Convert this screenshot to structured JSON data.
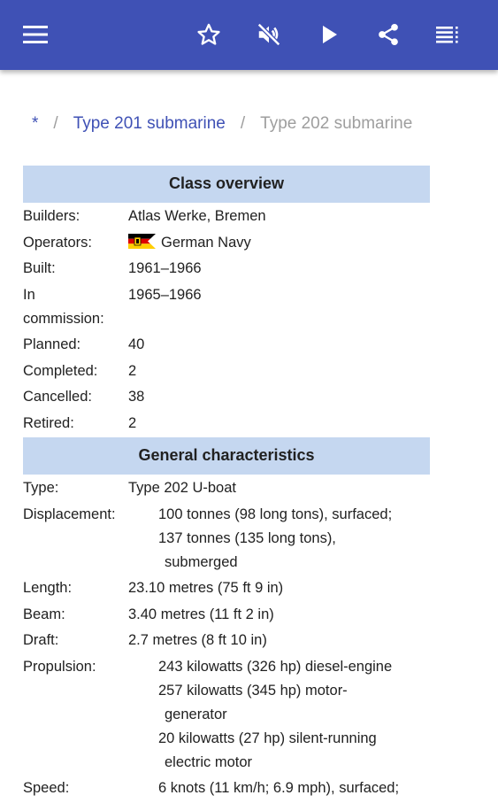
{
  "toolbar": {
    "menu_icon": "hamburger-menu-icon",
    "actions": [
      "star-icon",
      "mute-icon",
      "play-icon",
      "share-icon",
      "list-icon"
    ]
  },
  "breadcrumb": {
    "root": "*",
    "parent": "Type 201 submarine",
    "current": "Type 202 submarine"
  },
  "infobox": {
    "class_overview": {
      "title": "Class overview",
      "builders_label": "Builders:",
      "builders_value": "Atlas Werke, Bremen",
      "operators_label": "Operators:",
      "operators_value": "German Navy",
      "built_label": "Built:",
      "built_value": "1961–1966",
      "commission_label_1": "In",
      "commission_label_2": "commission:",
      "commission_value": "1965–1966",
      "planned_label": "Planned:",
      "planned_value": "40",
      "completed_label": "Completed:",
      "completed_value": "2",
      "cancelled_label": "Cancelled:",
      "cancelled_value": "38",
      "retired_label": "Retired:",
      "retired_value": "2"
    },
    "general": {
      "title": "General characteristics",
      "type_label": "Type:",
      "type_value": "Type 202 U-boat",
      "displacement_label": "Displacement:",
      "displacement_line1": "100 tonnes (98 long tons), surfaced;",
      "displacement_line2": "137 tonnes (135 long tons),",
      "displacement_line3": "submerged",
      "length_label": "Length:",
      "length_value": "23.10 metres (75 ft 9 in)",
      "beam_label": "Beam:",
      "beam_value": "3.40 metres (11 ft 2 in)",
      "draft_label": "Draft:",
      "draft_value": "2.7 metres (8 ft 10 in)",
      "propulsion_label": "Propulsion:",
      "propulsion_line1": "243 kilowatts (326 hp) diesel-engine",
      "propulsion_line2": "257 kilowatts (345 hp) motor-",
      "propulsion_line3": "generator",
      "propulsion_line4": "20 kilowatts (27 hp) silent-running",
      "propulsion_line5": "electric motor",
      "speed_label": "Speed:",
      "speed_value": "6 knots (11 km/h; 6.9 mph), surfaced;"
    }
  },
  "colors": {
    "appbar": "#3f51b5",
    "section_header": "#c5d7f0",
    "link": "#3f51b5",
    "muted": "#9e9e9e"
  }
}
